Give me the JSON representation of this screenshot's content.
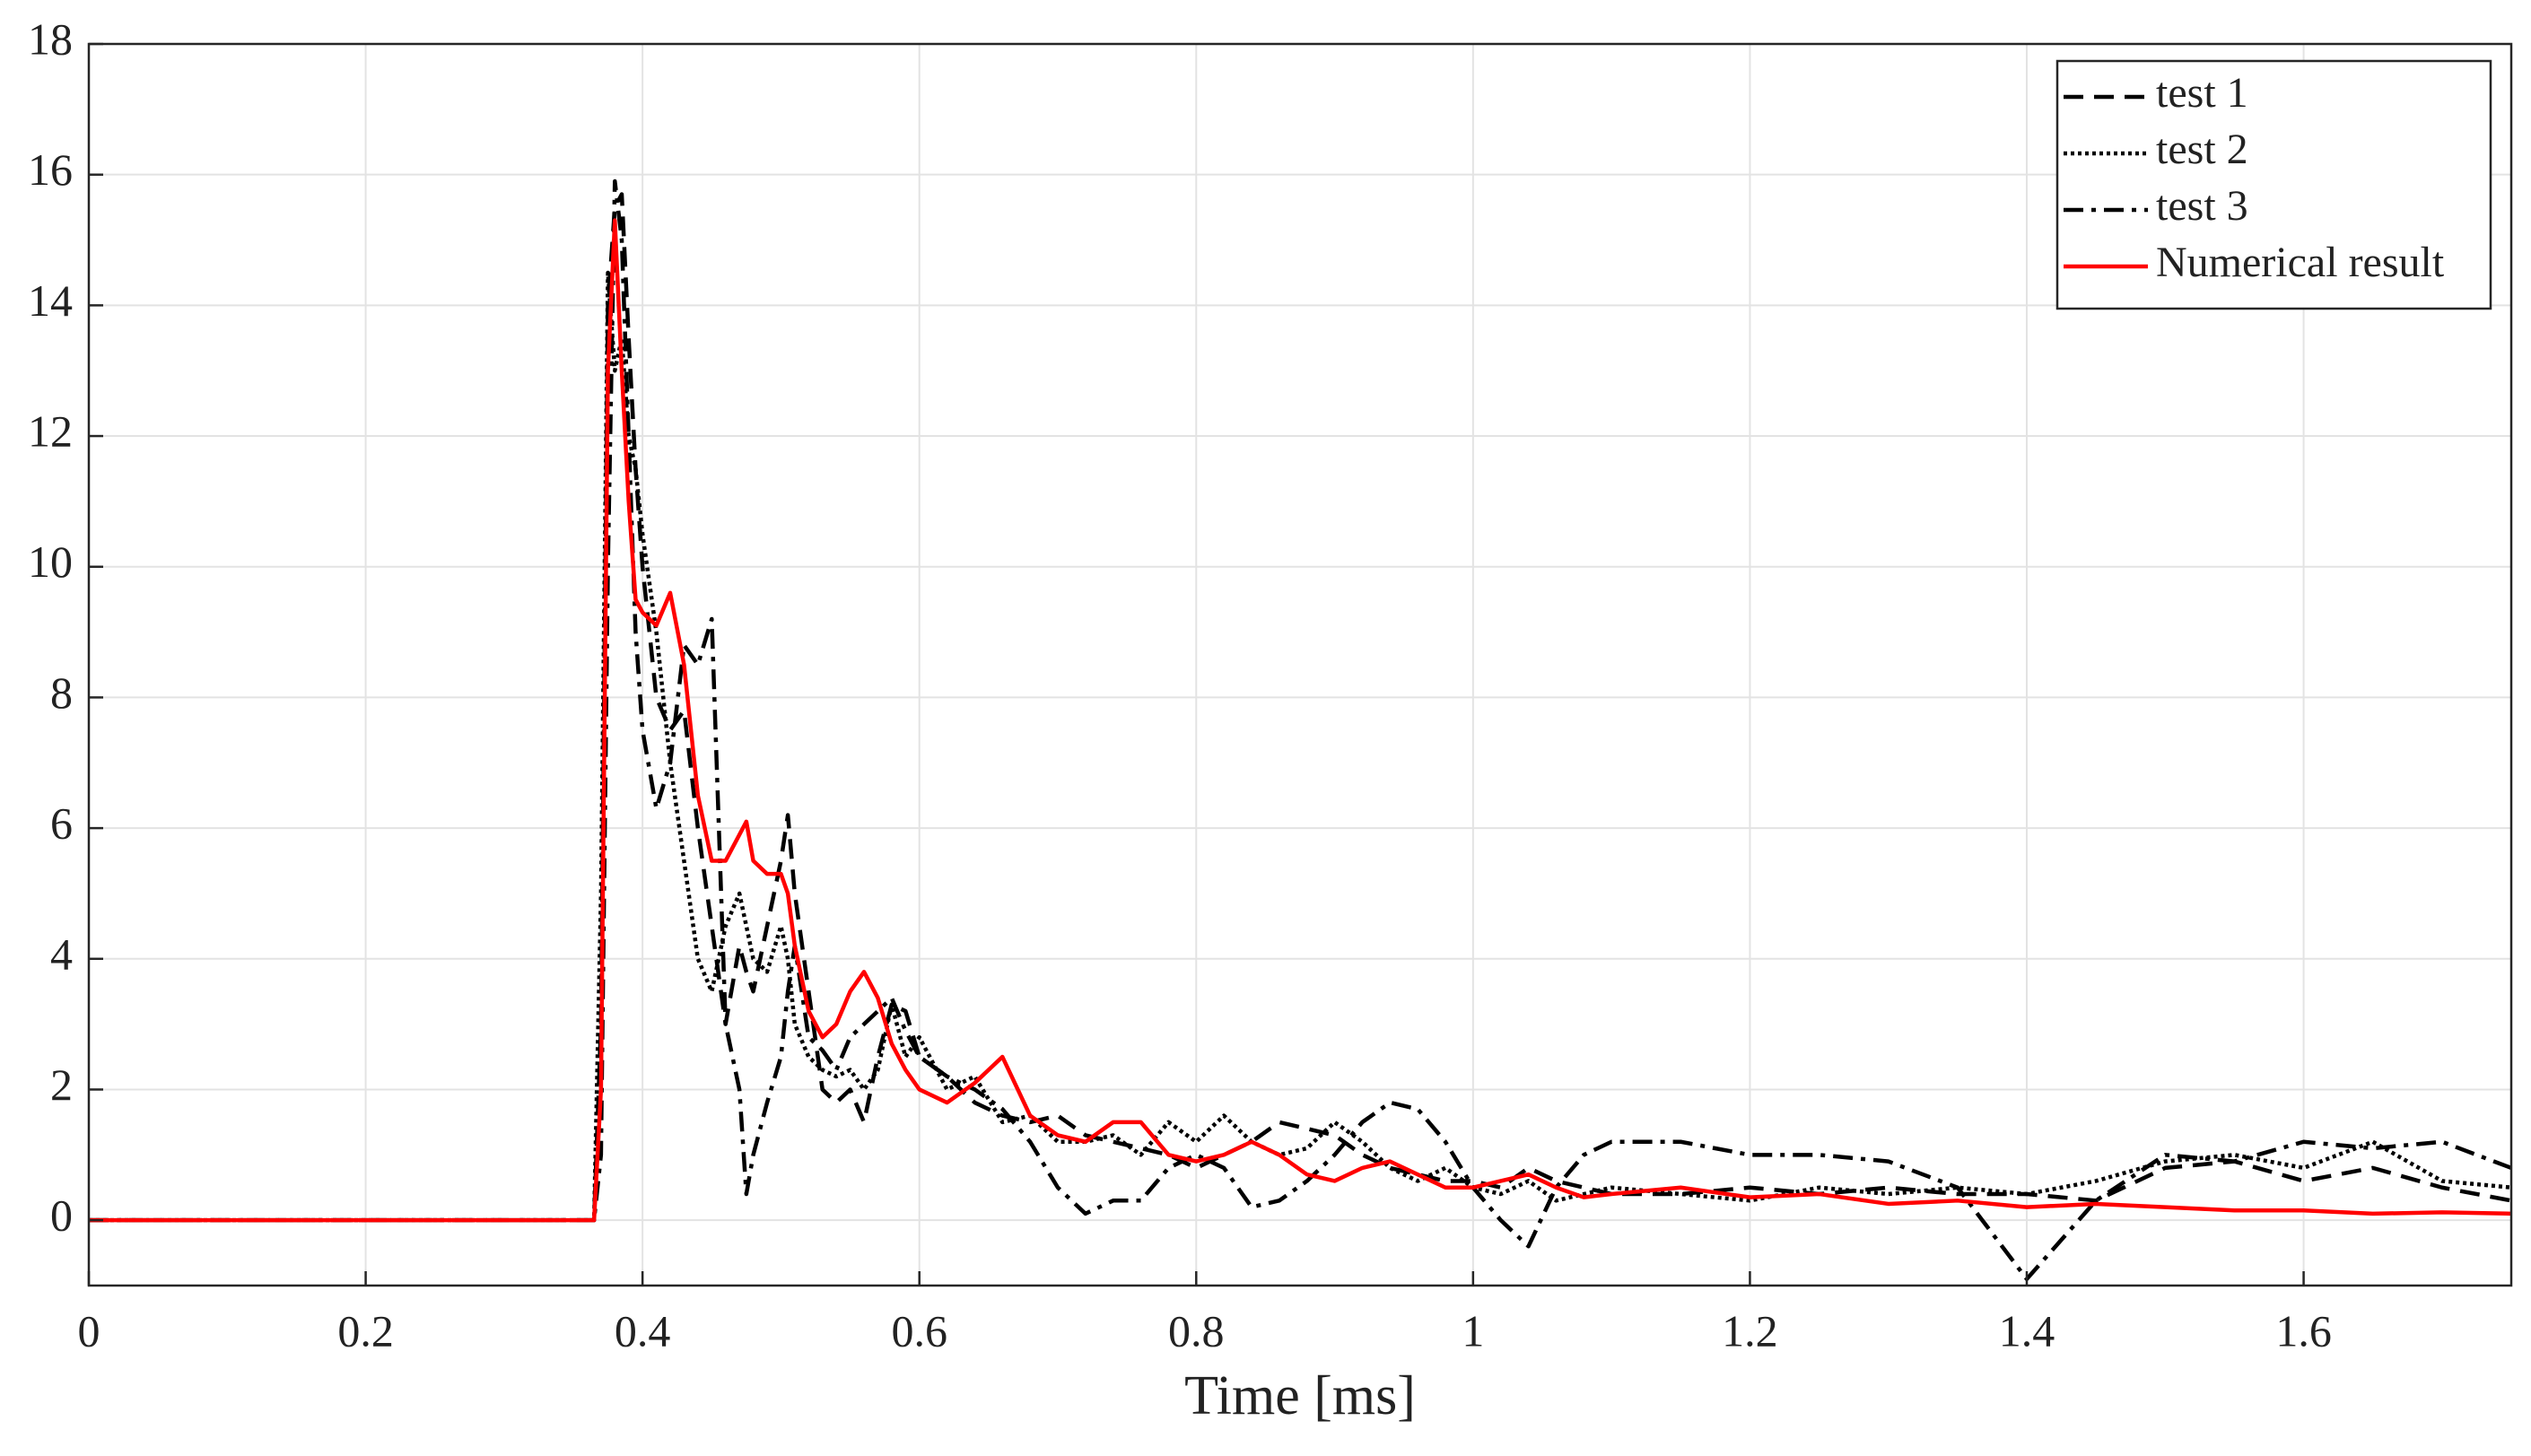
{
  "chart_data": {
    "type": "line",
    "xlabel": "Time [ms]",
    "x": [
      0,
      0.1,
      0.2,
      0.3,
      0.36,
      0.365,
      0.37,
      0.375,
      0.38,
      0.385,
      0.39,
      0.395,
      0.4,
      0.41,
      0.42,
      0.43,
      0.44,
      0.45,
      0.46,
      0.47,
      0.475,
      0.48,
      0.49,
      0.5,
      0.505,
      0.51,
      0.52,
      0.53,
      0.54,
      0.55,
      0.56,
      0.57,
      0.58,
      0.59,
      0.6,
      0.62,
      0.64,
      0.66,
      0.68,
      0.7,
      0.72,
      0.74,
      0.76,
      0.78,
      0.8,
      0.82,
      0.84,
      0.86,
      0.88,
      0.9,
      0.92,
      0.94,
      0.96,
      0.98,
      1.0,
      1.02,
      1.04,
      1.06,
      1.08,
      1.1,
      1.15,
      1.2,
      1.25,
      1.3,
      1.35,
      1.4,
      1.45,
      1.5,
      1.55,
      1.6,
      1.65,
      1.7,
      1.75
    ],
    "series": [
      {
        "name": "test 1",
        "color": "#000000",
        "linestyle": "dashed",
        "values": [
          0,
          0,
          0,
          0,
          0,
          0,
          3,
          14,
          15.5,
          15.7,
          13.5,
          11.5,
          10,
          8,
          7.5,
          7.8,
          6,
          4.5,
          3.0,
          4.2,
          3.8,
          3.5,
          4.5,
          5.5,
          6.2,
          5.0,
          3.5,
          2.0,
          1.8,
          2.0,
          1.5,
          2.5,
          3.3,
          3.2,
          2.5,
          2.2,
          1.8,
          1.6,
          1.5,
          1.6,
          1.3,
          1.2,
          1.1,
          1.0,
          0.8,
          1.0,
          1.2,
          1.5,
          1.4,
          1.3,
          1.0,
          0.8,
          0.7,
          0.6,
          0.6,
          0.5,
          0.8,
          0.6,
          0.5,
          0.4,
          0.4,
          0.5,
          0.4,
          0.5,
          0.4,
          0.4,
          0.3,
          0.8,
          0.9,
          0.6,
          0.8,
          0.5,
          0.3
        ]
      },
      {
        "name": "test 2",
        "color": "#000000",
        "linestyle": "dotted",
        "values": [
          0,
          0,
          0,
          0,
          0,
          0,
          5,
          14.5,
          13,
          13.5,
          12,
          11.5,
          10.5,
          9,
          7,
          5.5,
          4,
          3.5,
          4.5,
          5,
          4.5,
          4.0,
          3.8,
          4.5,
          4.0,
          3.0,
          2.5,
          2.3,
          2.2,
          2.3,
          2.0,
          2.3,
          3.3,
          2.5,
          2.8,
          2.0,
          2.2,
          1.5,
          1.6,
          1.2,
          1.2,
          1.3,
          1.0,
          1.5,
          1.2,
          1.6,
          1.2,
          1.0,
          1.1,
          1.5,
          1.2,
          0.8,
          0.6,
          0.8,
          0.5,
          0.4,
          0.6,
          0.3,
          0.4,
          0.5,
          0.4,
          0.3,
          0.5,
          0.4,
          0.5,
          0.4,
          0.6,
          0.9,
          1.0,
          0.8,
          1.2,
          0.6,
          0.5
        ]
      },
      {
        "name": "test 3",
        "color": "#000000",
        "linestyle": "dashdot",
        "values": [
          0,
          0,
          0,
          0,
          0,
          0,
          1,
          10,
          15.9,
          15,
          12,
          9,
          7.5,
          6.3,
          7,
          8.8,
          8.5,
          9.2,
          3.0,
          2.0,
          0.4,
          1.0,
          1.8,
          2.5,
          3.5,
          4.2,
          2.8,
          2.6,
          2.3,
          2.8,
          3.0,
          3.2,
          3.4,
          2.9,
          2.5,
          2.2,
          2.0,
          1.7,
          1.2,
          0.5,
          0.1,
          0.3,
          0.3,
          0.8,
          1.0,
          0.8,
          0.2,
          0.3,
          0.6,
          1.0,
          1.5,
          1.8,
          1.7,
          1.2,
          0.5,
          0.0,
          -0.4,
          0.5,
          1.0,
          1.2,
          1.2,
          1.0,
          1.0,
          0.9,
          0.5,
          -0.9,
          0.3,
          1.0,
          0.9,
          1.2,
          1.1,
          1.2,
          0.8
        ]
      },
      {
        "name": "Numerical result",
        "color": "#ff0000",
        "linestyle": "solid",
        "values": [
          0,
          0,
          0,
          0,
          0,
          0,
          2,
          13,
          15.3,
          13,
          11,
          9.5,
          9.3,
          9.1,
          9.6,
          8.5,
          6.5,
          5.5,
          5.5,
          5.9,
          6.1,
          5.5,
          5.3,
          5.3,
          5.0,
          4.2,
          3.2,
          2.8,
          3.0,
          3.5,
          3.8,
          3.4,
          2.7,
          2.3,
          2.0,
          1.8,
          2.1,
          2.5,
          1.6,
          1.3,
          1.2,
          1.5,
          1.5,
          1.0,
          0.9,
          1.0,
          1.2,
          1.0,
          0.7,
          0.6,
          0.8,
          0.9,
          0.7,
          0.5,
          0.5,
          0.6,
          0.7,
          0.5,
          0.35,
          0.4,
          0.5,
          0.35,
          0.4,
          0.25,
          0.3,
          0.2,
          0.25,
          0.2,
          0.15,
          0.15,
          0.1,
          0.12,
          0.1
        ]
      }
    ],
    "xlim": [
      0,
      1.75
    ],
    "xticks": [
      0,
      0.2,
      0.4,
      0.6,
      0.8,
      1,
      1.2,
      1.4,
      1.6
    ],
    "ylim": [
      -1,
      18
    ],
    "yticks": [
      0,
      2,
      4,
      6,
      8,
      10,
      12,
      14,
      16,
      18
    ],
    "grid": true,
    "legend": "northeast"
  }
}
